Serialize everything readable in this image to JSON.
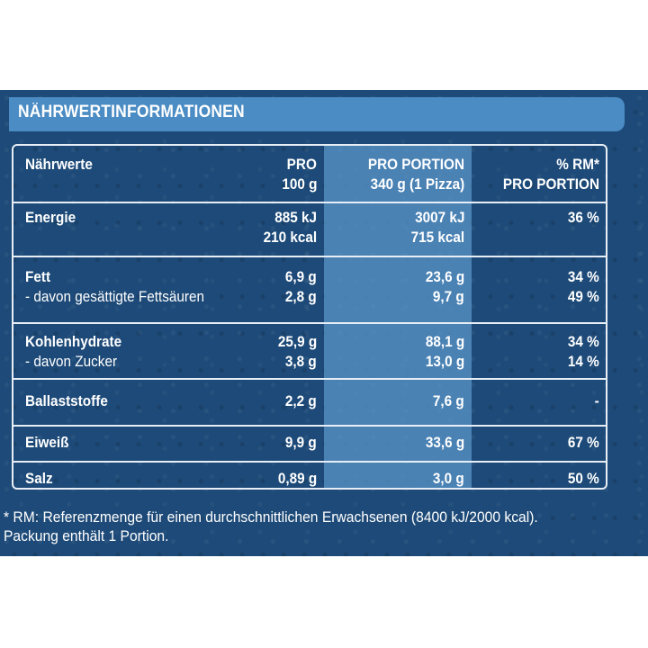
{
  "title": "NÄHRWERTINFORMATIONEN",
  "headers": {
    "name": "Nährwerte",
    "per100_line1": "PRO",
    "per100_line2": "100 g",
    "portion_line1": "PRO PORTION",
    "portion_line2": "340 g (1 Pizza)",
    "rm_line1": "% RM*",
    "rm_line2": "PRO PORTION"
  },
  "rows": [
    {
      "label": "Energie",
      "per100": "885 kJ",
      "per100_b": "210 kcal",
      "portion": "3007 kJ",
      "portion_b": "715 kcal",
      "rm": "36 %"
    },
    {
      "label": "Fett",
      "per100": "6,9 g",
      "portion": "23,6 g",
      "rm": "34 %",
      "sub_label": "- davon gesättigte Fettsäuren",
      "sub_per100": "2,8 g",
      "sub_portion": "9,7 g",
      "sub_rm": "49 %"
    },
    {
      "label": "Kohlenhydrate",
      "per100": "25,9 g",
      "portion": "88,1 g",
      "rm": "34 %",
      "sub_label": "- davon Zucker",
      "sub_per100": "3,8 g",
      "sub_portion": "13,0 g",
      "sub_rm": "14 %"
    },
    {
      "label": "Ballaststoffe",
      "per100": "2,2 g",
      "portion": "7,6 g",
      "rm": "-"
    },
    {
      "label": "Eiweiß",
      "per100": "9,9 g",
      "portion": "33,6 g",
      "rm": "67 %"
    },
    {
      "label": "Salz",
      "per100": "0,89 g",
      "portion": "3,0 g",
      "rm": "50 %"
    }
  ],
  "footnote": {
    "line1": "* RM: Referenzmenge für einen durchschnittlichen Erwachsenen (8400 kJ/2000 kcal).",
    "line2": "Packung enthält 1 Portion."
  },
  "colors": {
    "panel": "#1d4a78",
    "header_bar": "#4a8cc3",
    "highlight": "#5a96c8"
  }
}
